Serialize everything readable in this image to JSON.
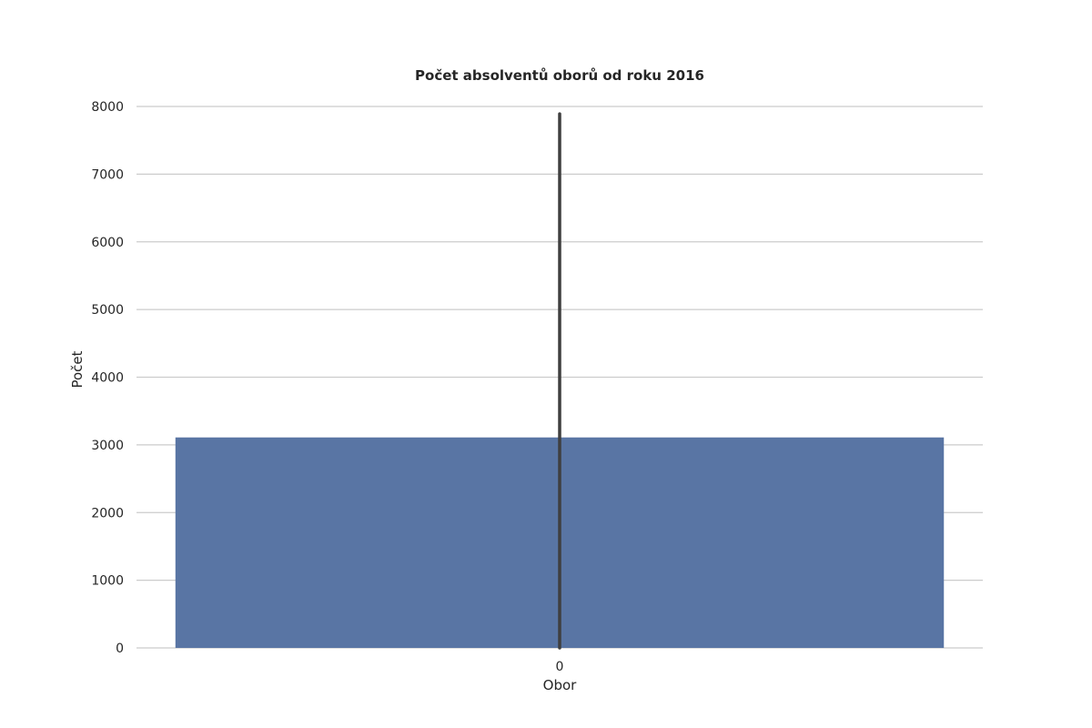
{
  "colors": {
    "bar": "#5975a4",
    "error_bar": "#3f3f3f",
    "grid": "#cccccc",
    "text": "#262626",
    "background": "#ffffff"
  },
  "chart_data": {
    "type": "bar",
    "title": "Počet absolventů oborů od roku 2016",
    "xlabel": "Obor",
    "ylabel": "Počet",
    "categories": [
      "0"
    ],
    "values": [
      3110
    ],
    "error_bars": [
      {
        "low": 0,
        "high": 7890
      }
    ],
    "ylim": [
      0,
      8000
    ],
    "yticks": [
      0,
      1000,
      2000,
      3000,
      4000,
      5000,
      6000,
      7000,
      8000
    ],
    "grid": "horizontal",
    "legend": "none"
  }
}
